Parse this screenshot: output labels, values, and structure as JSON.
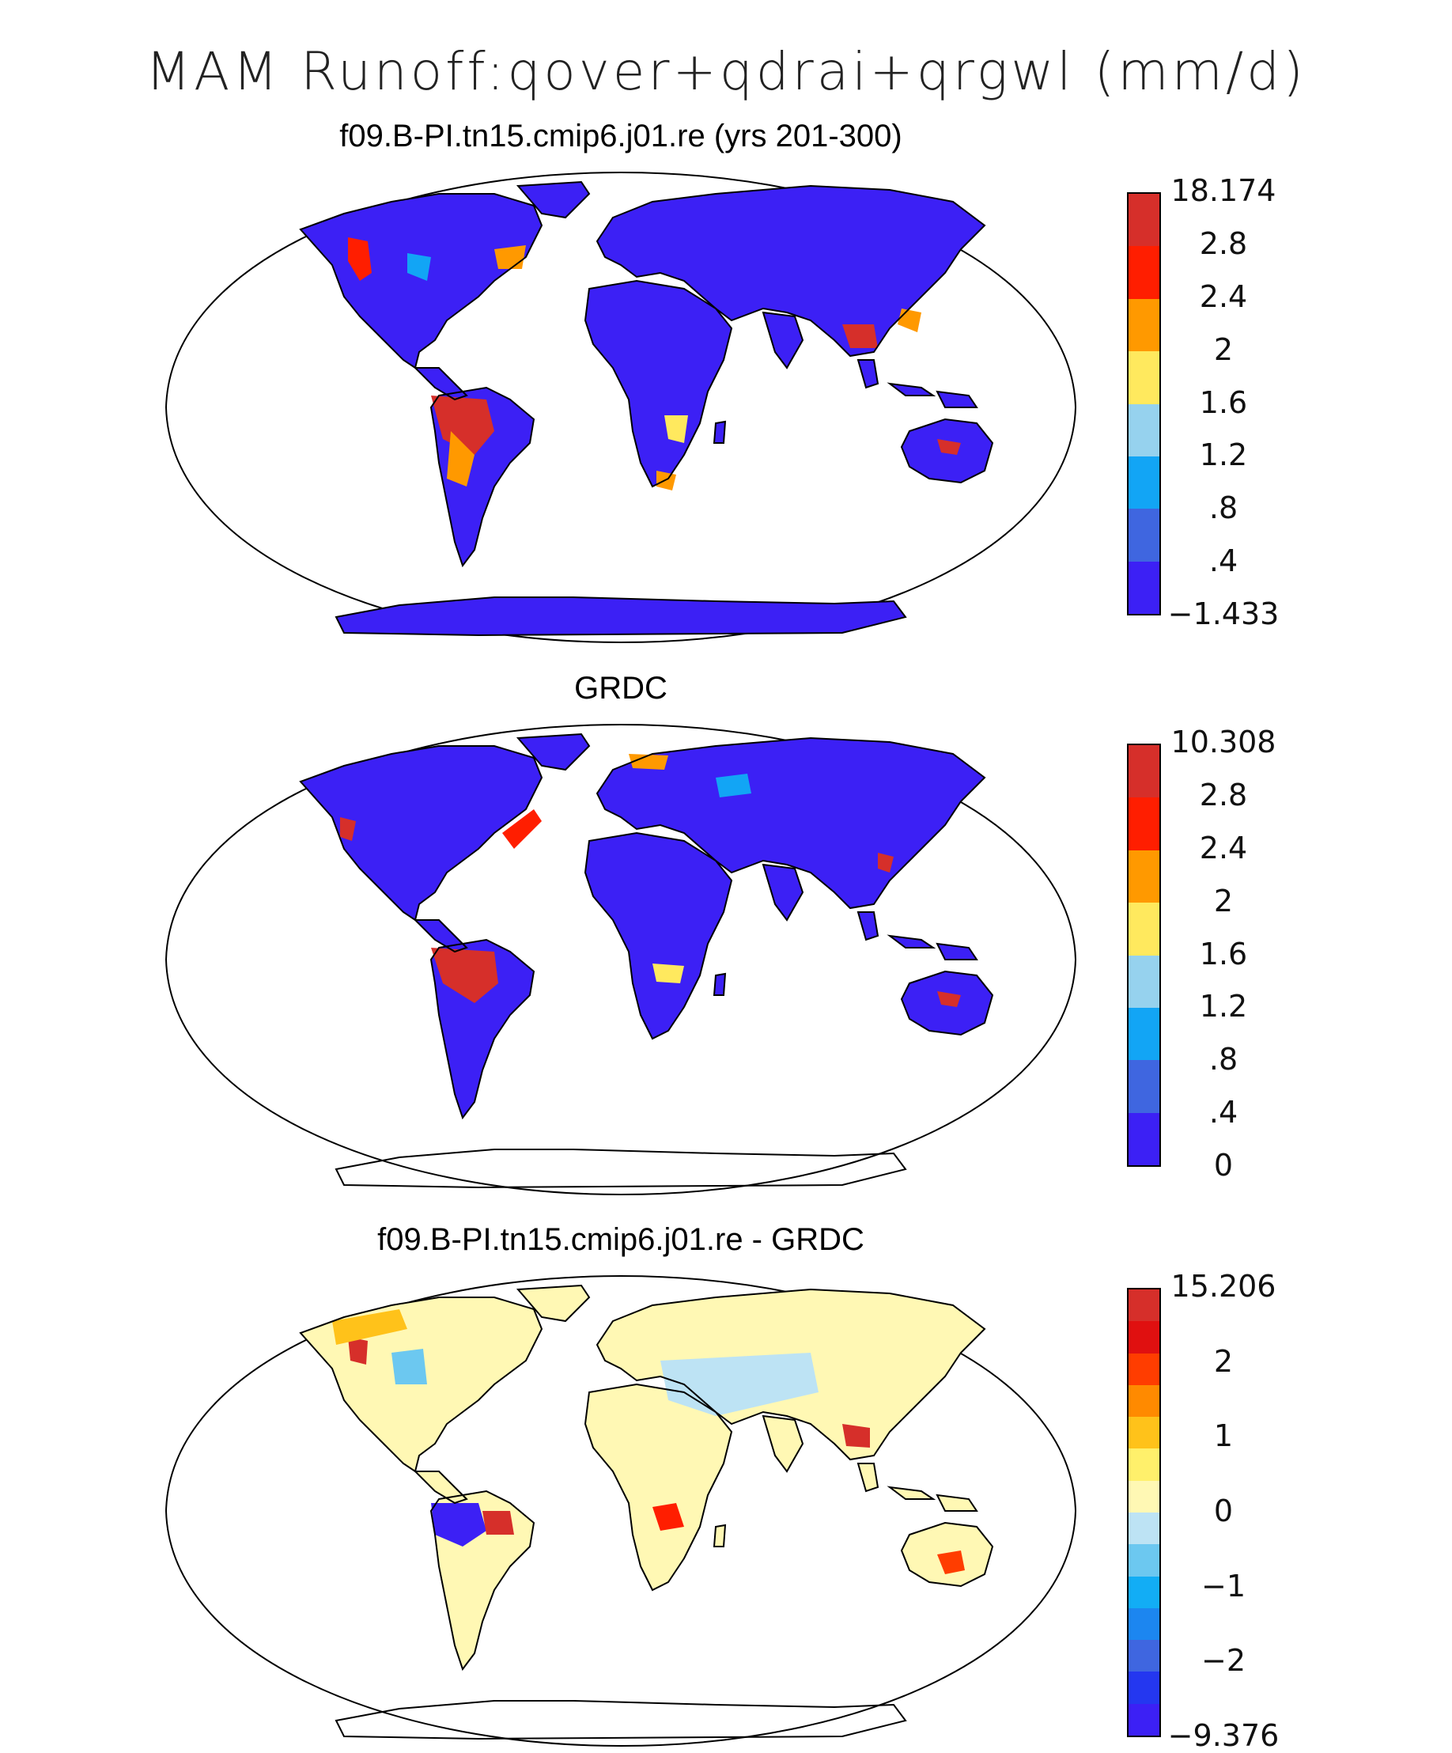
{
  "main_title": "MAM Runoff:qover+qdrai+qrgwl (mm/d)",
  "panels": [
    {
      "title": "f09.B-PI.tn15.cmip6.j01.re (yrs 201-300)",
      "colorbar": {
        "labels": [
          "18.174",
          "2.8",
          "2.4",
          "2",
          "1.6",
          "1.2",
          ".8",
          ".4",
          "−1.433"
        ],
        "colors": [
          "#d62f2a",
          "#ff1e00",
          "#ff9900",
          "#ffe95e",
          "#96d2ee",
          "#12a5f5",
          "#3f66e0",
          "#3c20f5"
        ]
      }
    },
    {
      "title": "GRDC",
      "colorbar": {
        "labels": [
          "10.308",
          "2.8",
          "2.4",
          "2",
          "1.6",
          "1.2",
          ".8",
          ".4",
          "0"
        ],
        "colors": [
          "#d62f2a",
          "#ff1e00",
          "#ff9900",
          "#ffe95e",
          "#96d2ee",
          "#12a5f5",
          "#3f66e0",
          "#3c20f5"
        ]
      }
    },
    {
      "title": "f09.B-PI.tn15.cmip6.j01.re - GRDC",
      "colorbar": {
        "labels": [
          "15.206",
          "2",
          "1",
          "0",
          "−1",
          "−2",
          "−9.376"
        ],
        "colors": [
          "#d62f2a",
          "#e01010",
          "#ff3d00",
          "#ff8a00",
          "#ffc21a",
          "#fff06b",
          "#fff8b4",
          "#bde3f4",
          "#6cc8f0",
          "#12adf5",
          "#1c86f0",
          "#3f66e0",
          "#2437f0",
          "#3c20f5"
        ]
      }
    }
  ]
}
